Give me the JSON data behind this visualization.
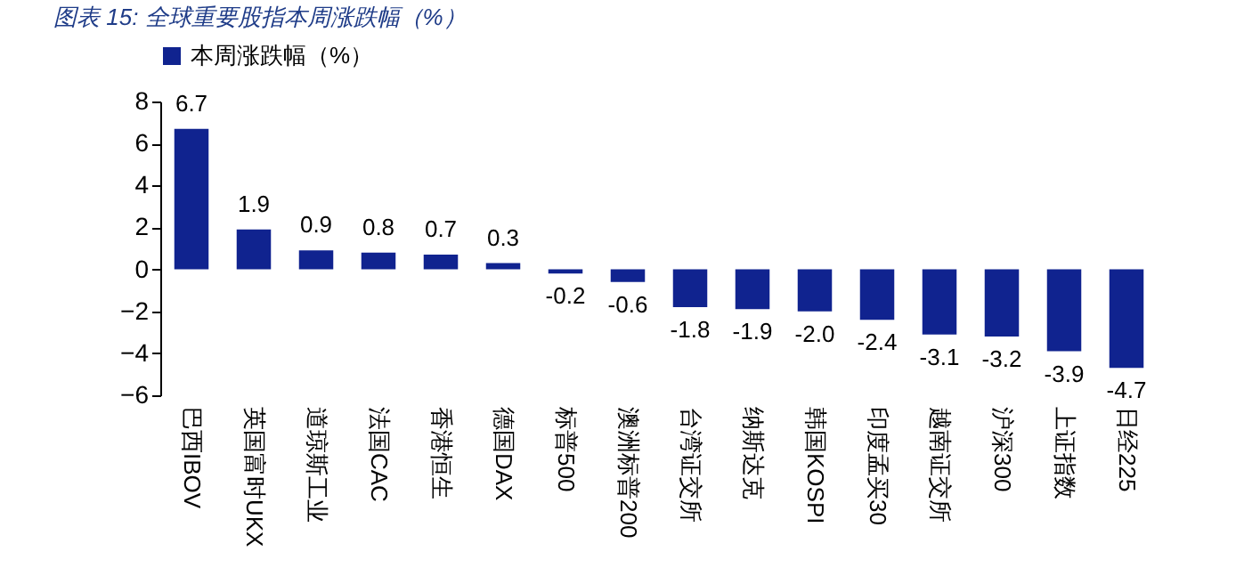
{
  "chart_data": {
    "type": "bar",
    "title": "图表 15: 全球重要股指本周涨跌幅（%）",
    "categories": [
      "巴西IBOV",
      "英国富时UKX",
      "道琼斯工业",
      "法国CAC",
      "香港恒生",
      "德国DAX",
      "标普500",
      "澳洲标普200",
      "台湾证交所",
      "纳斯达克",
      "韩国KOSPI",
      "印度孟买30",
      "越南证交所",
      "沪深300",
      "上证指数",
      "日经225"
    ],
    "series": [
      {
        "name": "本周涨跌幅（%）",
        "color": "#10238f",
        "values": [
          6.7,
          1.9,
          0.9,
          0.8,
          0.7,
          0.3,
          -0.2,
          -0.6,
          -1.8,
          -1.9,
          -2.0,
          -2.4,
          -3.1,
          -3.2,
          -3.9,
          -4.7
        ],
        "value_labels": [
          "6.7",
          "1.9",
          "0.9",
          "0.8",
          "0.7",
          "0.3",
          "-0.2",
          "-0.6",
          "-1.8",
          "-1.9",
          "-2.0",
          "-2.4",
          "-3.1",
          "-3.2",
          "-3.9",
          "-4.7"
        ]
      }
    ],
    "ylim": [
      -6,
      8
    ],
    "yticks": [
      -6,
      -4,
      -2,
      0,
      2,
      4,
      6,
      8
    ],
    "grid": false,
    "legend": "top"
  }
}
